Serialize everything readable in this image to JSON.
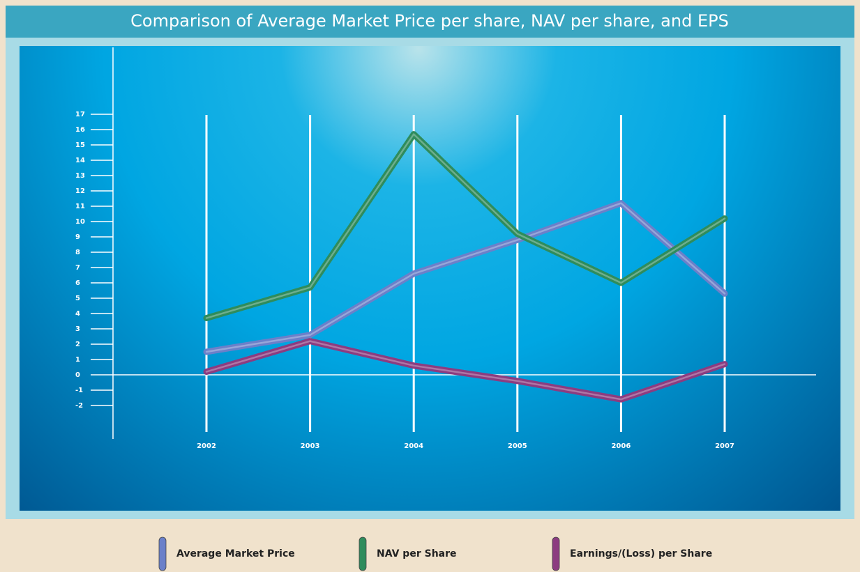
{
  "chart_data": {
    "type": "line",
    "title": "Comparison of Average Market Price per share, NAV per share, and EPS",
    "categories": [
      "2002",
      "2003",
      "2004",
      "2005",
      "2006",
      "2007"
    ],
    "series": [
      {
        "name": "Average Market Price",
        "color": "#6b80c9",
        "values": [
          1.5,
          2.6,
          6.6,
          8.8,
          11.2,
          5.3
        ]
      },
      {
        "name": "NAV per Share",
        "color": "#2f8c5c",
        "values": [
          3.7,
          5.7,
          15.7,
          9.2,
          6.0,
          10.2
        ]
      },
      {
        "name": "Earnings/(Loss) per Share",
        "color": "#8c3c80",
        "values": [
          0.2,
          2.2,
          0.6,
          -0.4,
          -1.6,
          0.7
        ]
      }
    ],
    "ylim": [
      -2,
      17
    ],
    "yticks": [
      -2,
      -1,
      0,
      1,
      2,
      3,
      4,
      5,
      6,
      7,
      8,
      9,
      10,
      11,
      12,
      13,
      14,
      15,
      16,
      17
    ]
  }
}
